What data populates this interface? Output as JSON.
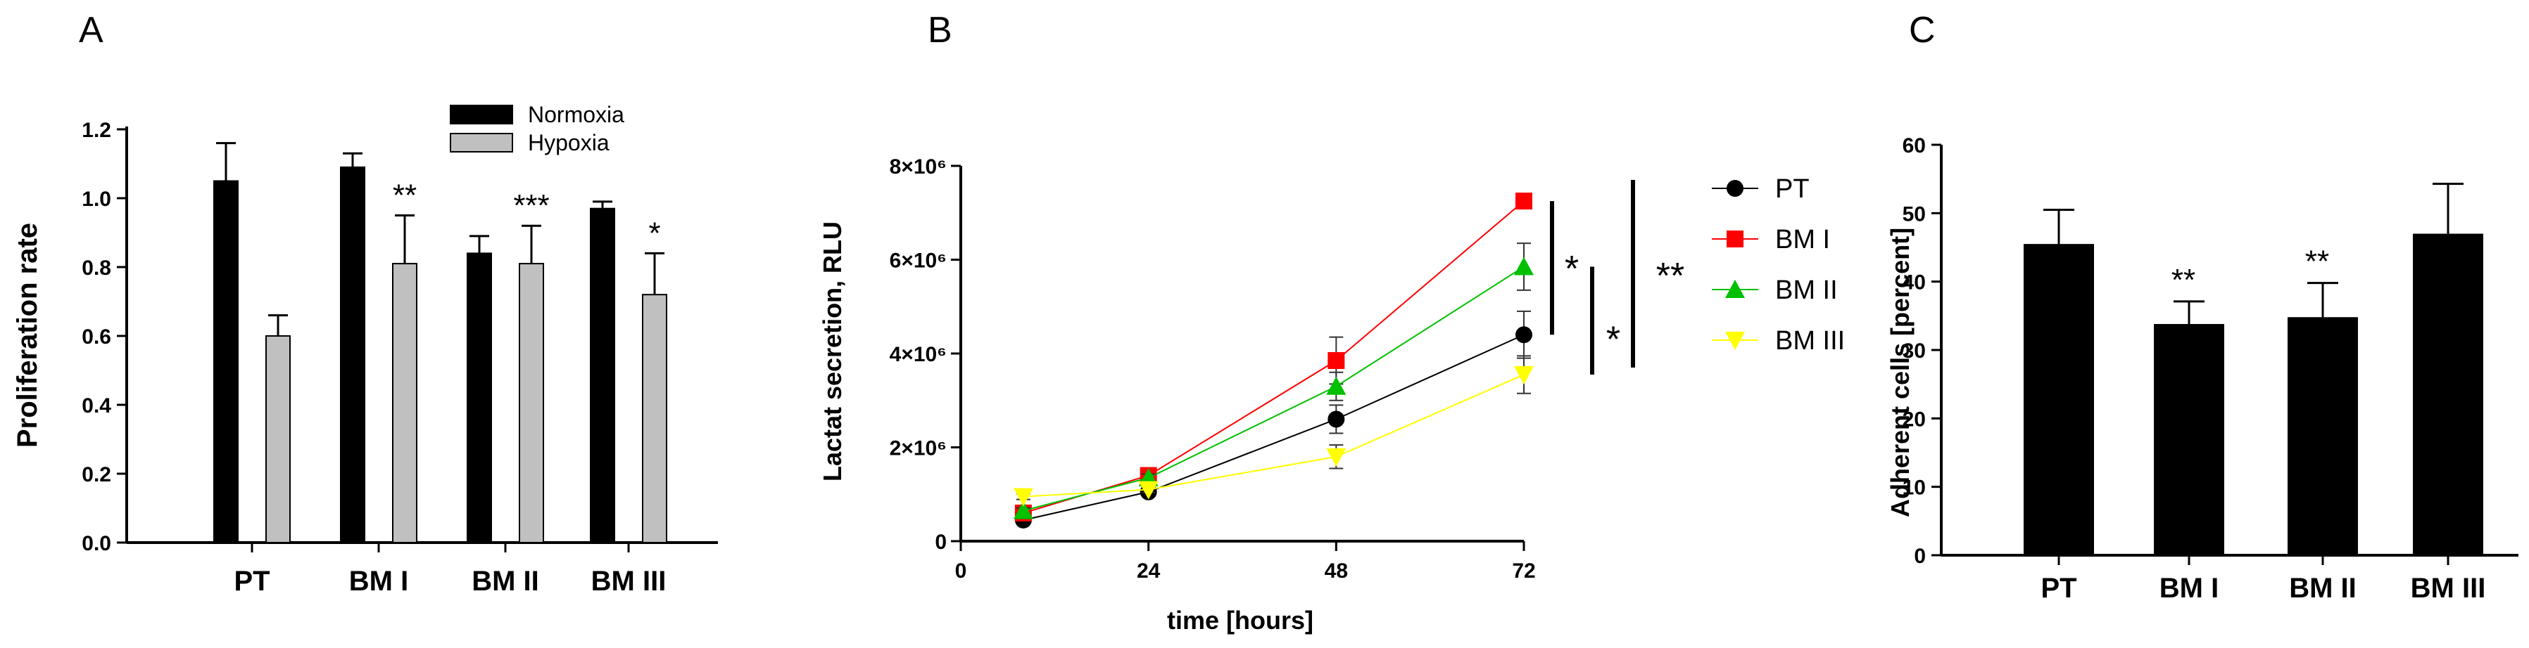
{
  "chart_data": [
    {
      "panel": "A",
      "type": "bar",
      "ylabel": "Proliferation rate",
      "ylim": [
        0,
        1.2
      ],
      "yticks": [
        "0.0",
        "0.2",
        "0.4",
        "0.6",
        "0.8",
        "1.0",
        "1.2"
      ],
      "categories": [
        "PT",
        "BM I",
        "BM II",
        "BM III"
      ],
      "series": [
        {
          "name": "Normoxia",
          "color": "#000000",
          "values": [
            1.05,
            1.09,
            0.84,
            0.97
          ],
          "errors": [
            0.11,
            0.04,
            0.05,
            0.02
          ]
        },
        {
          "name": "Hypoxia",
          "color": "#c0c0c0",
          "values": [
            0.6,
            0.81,
            0.81,
            0.72
          ],
          "errors": [
            0.06,
            0.14,
            0.11,
            0.12
          ]
        }
      ],
      "significance": [
        "",
        "**",
        "***",
        "*"
      ],
      "legend_position": "top-right"
    },
    {
      "panel": "B",
      "type": "line",
      "xlabel": "time [hours]",
      "ylabel": "Lactat secretion, RLU",
      "xlim": [
        0,
        72
      ],
      "ylim": [
        0,
        8000000
      ],
      "xticks": [
        "0",
        "24",
        "48",
        "72"
      ],
      "yticks": [
        "0",
        "2×10⁶",
        "4×10⁶",
        "6×10⁶",
        "8×10⁶"
      ],
      "x": [
        8,
        24,
        48,
        72
      ],
      "series": [
        {
          "name": "PT",
          "color": "#000000",
          "marker": "circle",
          "values": [
            450000,
            1050000,
            2600000,
            4400000
          ],
          "errors": [
            60000,
            80000,
            300000,
            500000
          ]
        },
        {
          "name": "BM I",
          "color": "#ff0000",
          "marker": "square",
          "values": [
            600000,
            1400000,
            3850000,
            7250000
          ],
          "errors": [
            60000,
            80000,
            500000,
            0
          ]
        },
        {
          "name": "BM II",
          "color": "#00c000",
          "marker": "triangle-up",
          "values": [
            650000,
            1350000,
            3300000,
            5850000
          ],
          "errors": [
            60000,
            80000,
            300000,
            500000
          ]
        },
        {
          "name": "BM III",
          "color": "#ffff00",
          "marker": "triangle-down",
          "values": [
            950000,
            1100000,
            1800000,
            3550000
          ],
          "errors": [
            60000,
            60000,
            250000,
            400000
          ]
        }
      ],
      "significance": [
        "*",
        "*",
        "**"
      ],
      "legend_position": "right"
    },
    {
      "panel": "C",
      "type": "bar",
      "ylabel": "Adherent cells [percent]",
      "ylim": [
        0,
        60
      ],
      "yticks": [
        "0",
        "10",
        "20",
        "30",
        "40",
        "50",
        "60"
      ],
      "categories": [
        "PT",
        "BM I",
        "BM II",
        "BM III"
      ],
      "values": [
        45.5,
        33.8,
        34.8,
        47.0
      ],
      "errors": [
        5.0,
        3.3,
        5.0,
        7.3
      ],
      "significance": [
        "",
        "**",
        "**",
        ""
      ]
    }
  ]
}
